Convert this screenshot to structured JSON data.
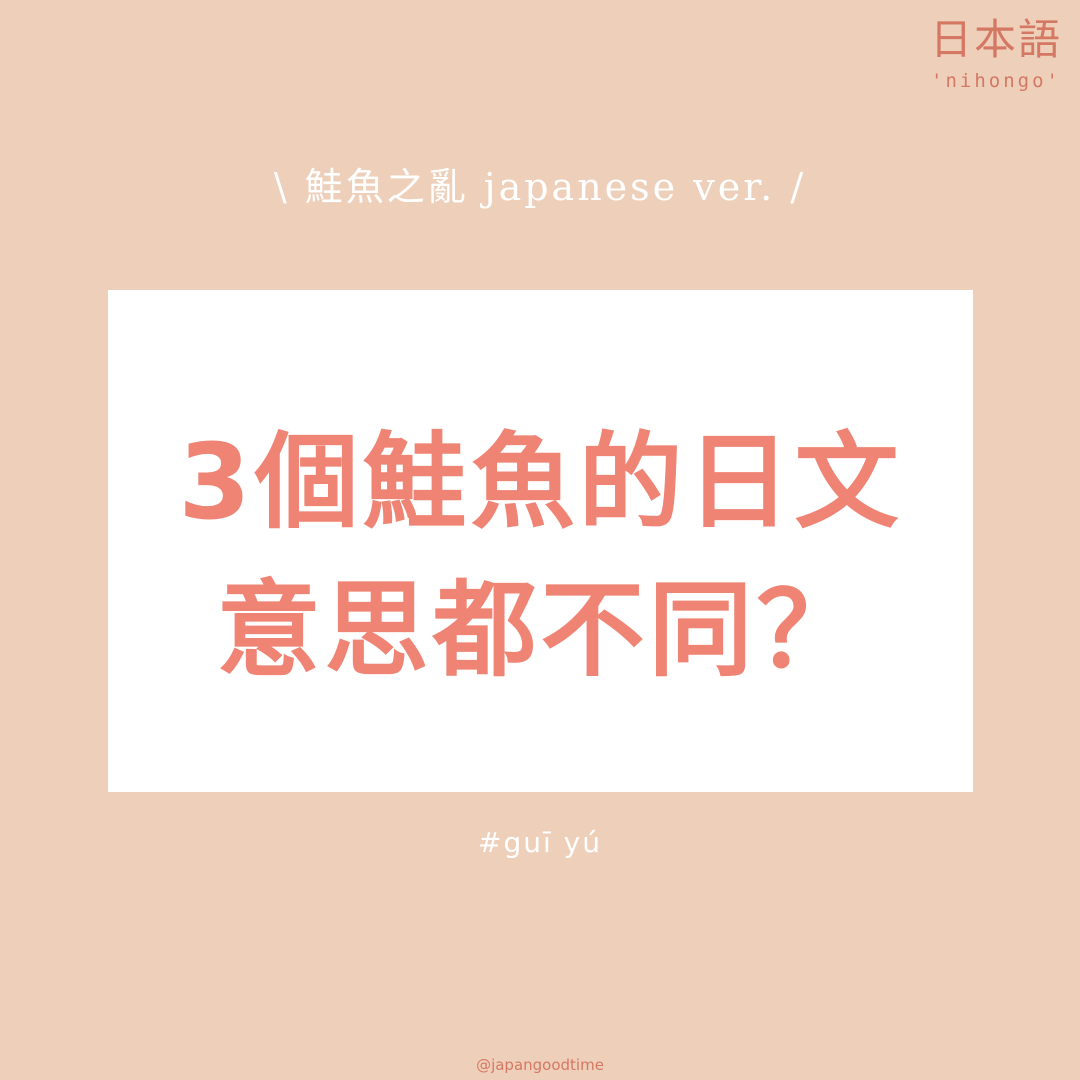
{
  "brand": {
    "title": "日本語",
    "subtitle": "'nihongo'"
  },
  "subtitle": "\\ 鮭魚之亂 japanese ver. /",
  "headline": {
    "line1": "3個鮭魚的日文",
    "line2": "意思都不同？"
  },
  "hashtag": "#guī yú",
  "handle": "@japangoodtime",
  "colors": {
    "background": "#eecfba",
    "accent": "#ef8474",
    "brand": "#d57863",
    "card": "#ffffff"
  }
}
